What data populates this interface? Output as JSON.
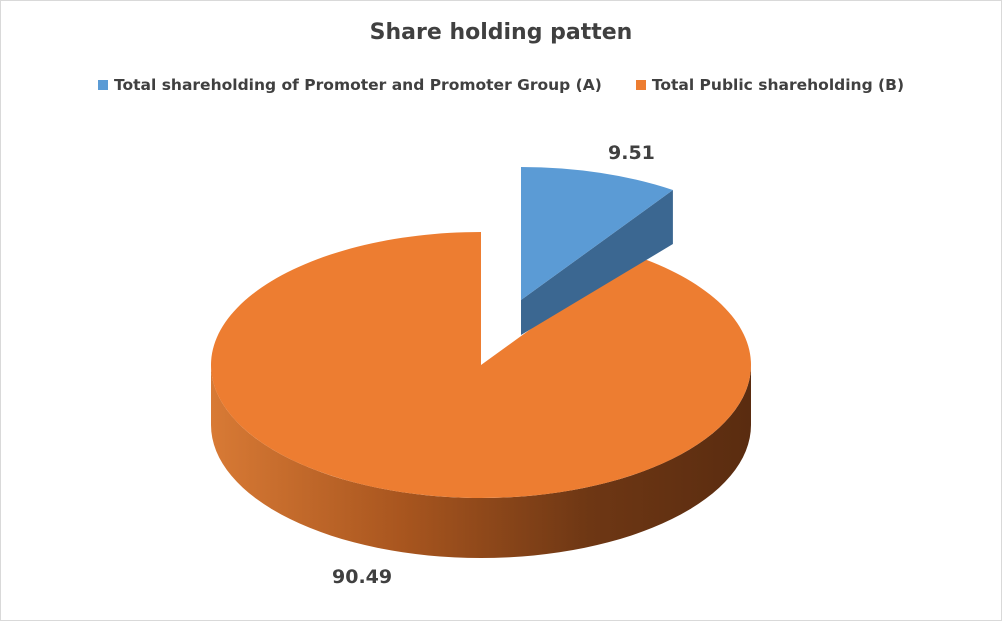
{
  "chart_data": {
    "type": "pie",
    "style": "3d-exploded",
    "title": "Share holding patten",
    "legend_position": "top",
    "categories": [
      "Total shareholding of Promoter and Promoter Group (A)",
      "Total Public shareholding (B)"
    ],
    "values": [
      9.51,
      90.49
    ],
    "data_labels": [
      "9.51",
      "90.49"
    ],
    "colors": [
      "#5b9bd5",
      "#ed7d31"
    ],
    "exploded": [
      true,
      false
    ]
  }
}
